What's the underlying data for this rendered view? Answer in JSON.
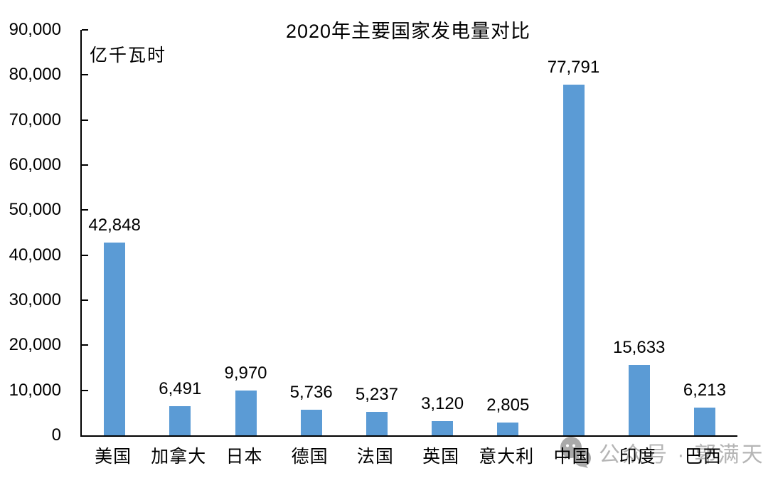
{
  "page": {
    "background": "#ffffff"
  },
  "chart_data": {
    "type": "bar",
    "title": "2020年主要国家发电量对比",
    "unit_label": "亿千瓦时",
    "xlabel": "",
    "ylabel": "亿千瓦时",
    "categories": [
      "美国",
      "加拿大",
      "日本",
      "德国",
      "法国",
      "英国",
      "意大利",
      "中国",
      "印度",
      "巴西"
    ],
    "values": [
      42848,
      6491,
      9970,
      5736,
      5237,
      3120,
      2805,
      77791,
      15633,
      6213
    ],
    "value_labels": [
      "42,848",
      "6,491",
      "9,970",
      "5,736",
      "5,237",
      "3,120",
      "2,805",
      "77,791",
      "15,633",
      "6,213"
    ],
    "ylim": [
      0,
      90000
    ],
    "ytick_interval": 10000,
    "ytick_labels": [
      "0",
      "10,000",
      "20,000",
      "30,000",
      "40,000",
      "50,000",
      "60,000",
      "70,000",
      "80,000",
      "90,000"
    ],
    "bar_color": "#5B9BD5",
    "axis_color": "#000000",
    "text_color": "#000000",
    "grid": false,
    "legend_position": "none"
  },
  "watermark": {
    "icon": "wechat-icon",
    "text": "公众号 · 郭满天",
    "color": "#b5b5b5"
  }
}
